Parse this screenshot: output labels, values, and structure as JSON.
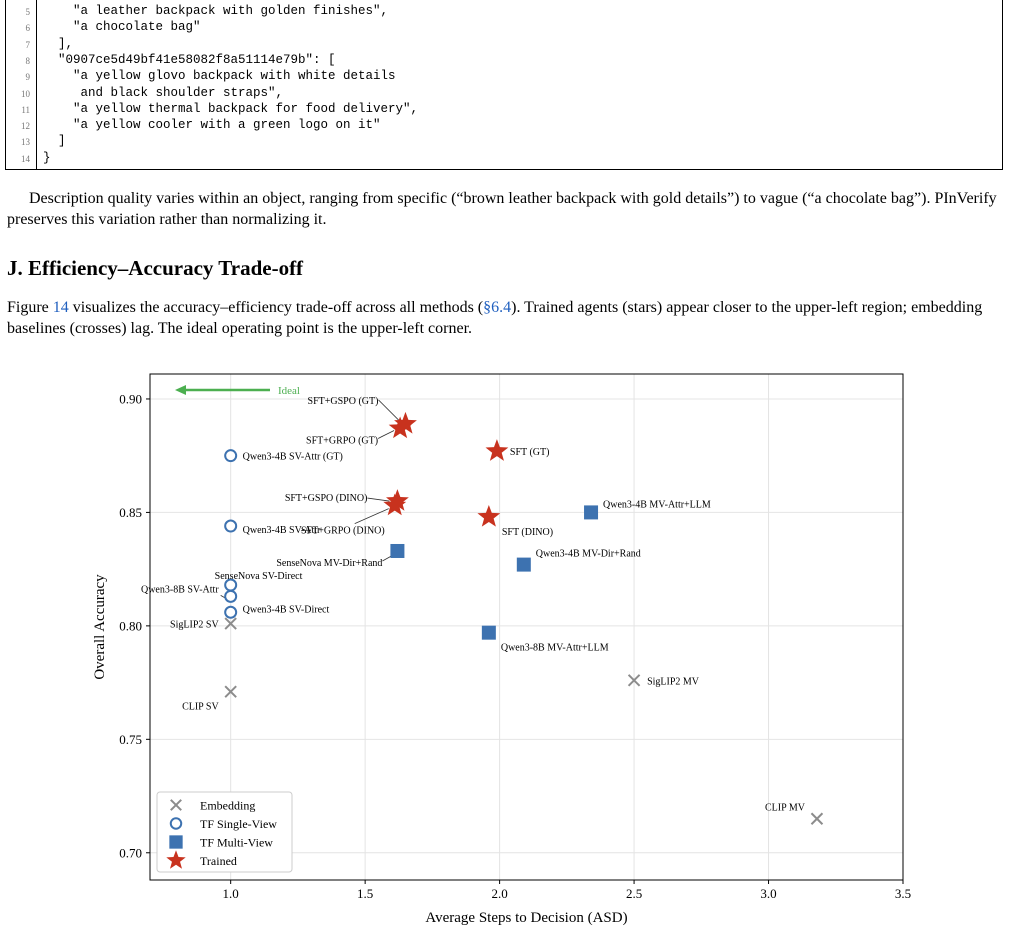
{
  "code": {
    "lines": [
      {
        "n": "5",
        "text": "    \"a leather backpack with golden finishes\","
      },
      {
        "n": "6",
        "text": "    \"a chocolate bag\""
      },
      {
        "n": "7",
        "text": "  ],"
      },
      {
        "n": "8",
        "text": "  \"0907ce5d49bf41e58082f8a51114e79b\": ["
      },
      {
        "n": "9",
        "text": "    \"a yellow glovo backpack with white details"
      },
      {
        "n": "10",
        "text": "     and black shoulder straps\","
      },
      {
        "n": "11",
        "text": "    \"a yellow thermal backpack for food delivery\","
      },
      {
        "n": "12",
        "text": "    \"a yellow cooler with a green logo on it\""
      },
      {
        "n": "13",
        "text": "  ]"
      },
      {
        "n": "14",
        "text": "}"
      }
    ]
  },
  "paragraph1": "Description quality varies within an object, ranging from specific (“brown leather backpack with gold details”) to vague (“a chocolate bag”). PInVerify preserves this variation rather than normalizing it.",
  "section": {
    "title": "J. Efficiency–Accuracy Trade-off"
  },
  "paragraph2": {
    "pre": "Figure ",
    "fig_ref": "14",
    "mid": " visualizes the accuracy–efficiency trade-off across all methods (",
    "sec_ref": "§6.4",
    "post": "). Trained agents (stars) appear closer to the upper-left region; embedding baselines (crosses) lag. The ideal operating point is the upper-left corner."
  },
  "chart_data": {
    "type": "scatter",
    "xlabel": "Average Steps to Decision (ASD)",
    "ylabel": "Overall Accuracy",
    "xlim": [
      0.7,
      3.5
    ],
    "ylim": [
      0.688,
      0.911
    ],
    "xticks": [
      1.0,
      1.5,
      2.0,
      2.5,
      3.0,
      3.5
    ],
    "xtick_labels": [
      "1.0",
      "1.5",
      "2.0",
      "2.5",
      "3.0",
      "3.5"
    ],
    "yticks": [
      0.7,
      0.75,
      0.8,
      0.85,
      0.9
    ],
    "ytick_labels": [
      "0.70",
      "0.75",
      "0.80",
      "0.85",
      "0.90"
    ],
    "grid": true,
    "legend_position": "lower-left",
    "ideal_label": "Ideal",
    "colors": {
      "embedding": "#8c8c8c",
      "tf_single": "#3d72b0",
      "tf_multi": "#3d72b0",
      "trained": "#c8321e",
      "ideal": "#4caf50"
    },
    "series": [
      {
        "name": "Embedding",
        "marker": "x",
        "points": [
          {
            "label": "SigLIP2 SV",
            "x": 1.0,
            "y": 0.801
          },
          {
            "label": "CLIP SV",
            "x": 1.0,
            "y": 0.771
          },
          {
            "label": "SigLIP2 MV",
            "x": 2.5,
            "y": 0.776
          },
          {
            "label": "CLIP MV",
            "x": 3.18,
            "y": 0.715
          }
        ]
      },
      {
        "name": "TF Single-View",
        "marker": "circle",
        "points": [
          {
            "label": "Qwen3-4B SV-Attr (GT)",
            "x": 1.0,
            "y": 0.875
          },
          {
            "label": "Qwen3-4B SV-Attr",
            "x": 1.0,
            "y": 0.844
          },
          {
            "label": "SenseNova SV-Direct",
            "x": 1.0,
            "y": 0.818
          },
          {
            "label": "Qwen3-8B SV-Attr",
            "x": 1.0,
            "y": 0.813
          },
          {
            "label": "Qwen3-4B SV-Direct",
            "x": 1.0,
            "y": 0.806
          }
        ]
      },
      {
        "name": "TF Multi-View",
        "marker": "square",
        "points": [
          {
            "label": "Qwen3-4B MV-Attr+LLM",
            "x": 2.34,
            "y": 0.85
          },
          {
            "label": "Qwen3-4B MV-Dir+Rand",
            "x": 2.09,
            "y": 0.827
          },
          {
            "label": "SenseNova MV-Dir+Rand",
            "x": 1.62,
            "y": 0.833
          },
          {
            "label": "Qwen3-8B MV-Attr+LLM",
            "x": 1.96,
            "y": 0.797
          }
        ]
      },
      {
        "name": "Trained",
        "marker": "star",
        "points": [
          {
            "label": "SFT+GSPO (GT)",
            "x": 1.65,
            "y": 0.889
          },
          {
            "label": "SFT+GRPO (GT)",
            "x": 1.63,
            "y": 0.887
          },
          {
            "label": "SFT (GT)",
            "x": 1.99,
            "y": 0.877
          },
          {
            "label": "SFT+GSPO (DINO)",
            "x": 1.62,
            "y": 0.855
          },
          {
            "label": "SFT+GRPO (DINO)",
            "x": 1.61,
            "y": 0.853
          },
          {
            "label": "SFT (DINO)",
            "x": 1.96,
            "y": 0.848
          }
        ]
      }
    ]
  }
}
